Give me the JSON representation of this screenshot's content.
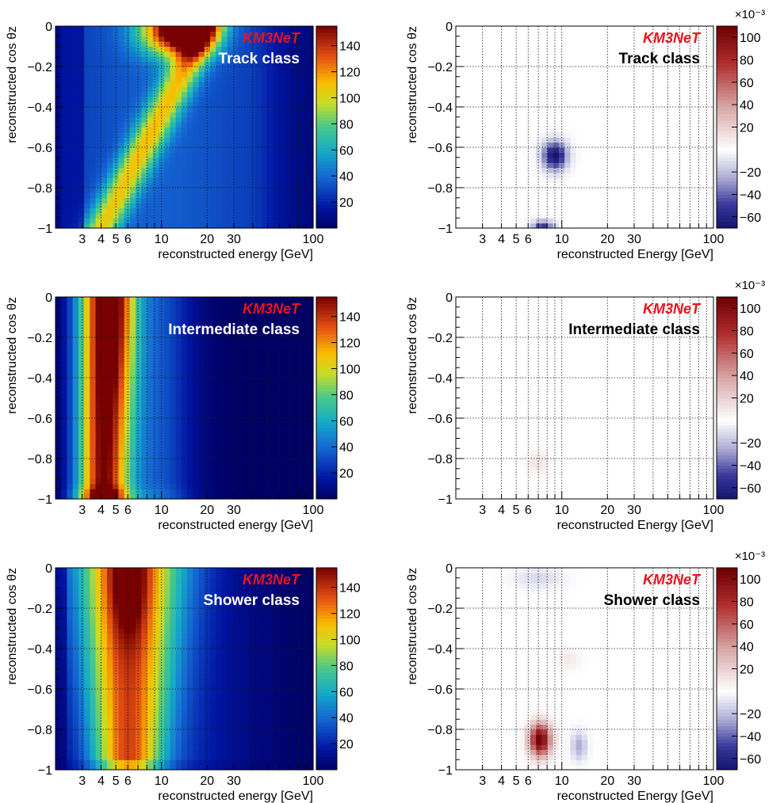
{
  "figure": {
    "background": "#ffffff"
  },
  "chart_data": [
    {
      "id": "p1",
      "type": "heatmap",
      "variant": "counts",
      "class": "track",
      "experiment_label": "KM3NeT",
      "class_label": "Track class",
      "xlabel": "reconstructed energy [GeV]",
      "ylabel": "reconstructed cos θz",
      "xscale": "log",
      "xlim": [
        2,
        100
      ],
      "ylim": [
        -1,
        0
      ],
      "xticks": [
        3,
        4,
        5,
        6,
        10,
        20,
        30,
        100
      ],
      "yticks": [
        0,
        -0.2,
        -0.4,
        -0.6,
        -0.8,
        -1
      ],
      "ytick_labels": [
        "0",
        "−0.2",
        "−0.4",
        "−0.6",
        "−0.8",
        "−1"
      ],
      "colorbar": {
        "range": [
          0,
          155
        ],
        "ticks": [
          20,
          40,
          60,
          80,
          100,
          120,
          140
        ],
        "tick_labels": [
          "20",
          "40",
          "60",
          "80",
          "100",
          "120",
          "140"
        ],
        "exponent_label": ""
      },
      "features": [
        {
          "shape": "ridge-diag",
          "start": [
            4,
            -1
          ],
          "end": [
            20,
            0
          ],
          "peak": 150,
          "width": 0.18
        },
        {
          "shape": "band-top",
          "center_energy": 15,
          "cos_z": -0.05,
          "peak": 150
        }
      ],
      "grid": true
    },
    {
      "id": "p2",
      "type": "heatmap",
      "variant": "difference",
      "class": "track",
      "experiment_label": "KM3NeT",
      "class_label": "Track class",
      "xlabel": "reconstructed Energy [GeV]",
      "ylabel": "reconstructed cos θz",
      "xscale": "log",
      "xlim": [
        2,
        100
      ],
      "ylim": [
        -1,
        0
      ],
      "xticks": [
        3,
        4,
        5,
        6,
        10,
        20,
        30,
        100
      ],
      "yticks": [
        0,
        -0.2,
        -0.4,
        -0.6,
        -0.8,
        -1
      ],
      "ytick_labels": [
        "0",
        "−0.2",
        "−0.4",
        "−0.6",
        "−0.8",
        "−1"
      ],
      "colorbar": {
        "range": [
          -0.07,
          0.11
        ],
        "ticks": [
          -60,
          -40,
          -20,
          20,
          40,
          60,
          80,
          100
        ],
        "tick_labels": [
          "−60",
          "−40",
          "−20",
          "20",
          "40",
          "60",
          "80",
          "100"
        ],
        "exponent_label": "×10⁻³"
      },
      "blobs": [
        {
          "energy": 9.0,
          "cos_z": -0.64,
          "value": -0.07,
          "sigma_logE": 0.08,
          "sigma_cos": 0.07
        },
        {
          "energy": 7.5,
          "cos_z": -0.99,
          "value": -0.05,
          "sigma_logE": 0.07,
          "sigma_cos": 0.03
        }
      ],
      "grid": true
    },
    {
      "id": "p3",
      "type": "heatmap",
      "variant": "counts",
      "class": "intermediate",
      "experiment_label": "KM3NeT",
      "class_label": "Intermediate class",
      "xlabel": "reconstructed energy [GeV]",
      "ylabel": "reconstructed cos θz",
      "xscale": "log",
      "xlim": [
        2,
        100
      ],
      "ylim": [
        -1,
        0
      ],
      "xticks": [
        3,
        4,
        5,
        6,
        10,
        20,
        30,
        100
      ],
      "yticks": [
        0,
        -0.2,
        -0.4,
        -0.6,
        -0.8,
        -1
      ],
      "ytick_labels": [
        "0",
        "−0.2",
        "−0.4",
        "−0.6",
        "−0.8",
        "−1"
      ],
      "colorbar": {
        "range": [
          0,
          155
        ],
        "ticks": [
          20,
          40,
          60,
          80,
          100,
          120,
          140
        ],
        "tick_labels": [
          "20",
          "40",
          "60",
          "80",
          "100",
          "120",
          "140"
        ],
        "exponent_label": ""
      },
      "features": [
        {
          "shape": "column",
          "center_energy": 4.0,
          "peak": 150
        }
      ],
      "grid": true
    },
    {
      "id": "p4",
      "type": "heatmap",
      "variant": "difference",
      "class": "intermediate",
      "experiment_label": "KM3NeT",
      "class_label": "Intermediate class",
      "xlabel": "reconstructed Energy [GeV]",
      "ylabel": "reconstructed cos θz",
      "xscale": "log",
      "xlim": [
        2,
        100
      ],
      "ylim": [
        -1,
        0
      ],
      "xticks": [
        3,
        4,
        5,
        6,
        10,
        20,
        30,
        100
      ],
      "yticks": [
        0,
        -0.2,
        -0.4,
        -0.6,
        -0.8,
        -1
      ],
      "ytick_labels": [
        "0",
        "−0.2",
        "−0.4",
        "−0.6",
        "−0.8",
        "−1"
      ],
      "colorbar": {
        "range": [
          -0.07,
          0.11
        ],
        "ticks": [
          -60,
          -40,
          -20,
          20,
          40,
          60,
          80,
          100
        ],
        "tick_labels": [
          "−60",
          "−40",
          "−20",
          "20",
          "40",
          "60",
          "80",
          "100"
        ],
        "exponent_label": "×10⁻³"
      },
      "blobs": [
        {
          "energy": 7.0,
          "cos_z": -0.82,
          "value": 0.012,
          "sigma_logE": 0.07,
          "sigma_cos": 0.06
        }
      ],
      "grid": true
    },
    {
      "id": "p5",
      "type": "heatmap",
      "variant": "counts",
      "class": "shower",
      "experiment_label": "KM3NeT",
      "class_label": "Shower class",
      "xlabel": "reconstructed energy [GeV]",
      "ylabel": "reconstructed cos θz",
      "xscale": "log",
      "xlim": [
        2,
        100
      ],
      "ylim": [
        -1,
        0
      ],
      "xticks": [
        3,
        4,
        5,
        6,
        10,
        20,
        30,
        100
      ],
      "yticks": [
        0,
        -0.2,
        -0.4,
        -0.6,
        -0.8,
        -1
      ],
      "ytick_labels": [
        "0",
        "−0.2",
        "−0.4",
        "−0.6",
        "−0.8",
        "−1"
      ],
      "colorbar": {
        "range": [
          0,
          155
        ],
        "ticks": [
          20,
          40,
          60,
          80,
          100,
          120,
          140
        ],
        "tick_labels": [
          "20",
          "40",
          "60",
          "80",
          "100",
          "120",
          "140"
        ],
        "exponent_label": ""
      },
      "features": [
        {
          "shape": "funnel",
          "center_energy": 6.0,
          "peak": 145
        }
      ],
      "grid": true
    },
    {
      "id": "p6",
      "type": "heatmap",
      "variant": "difference",
      "class": "shower",
      "experiment_label": "KM3NeT",
      "class_label": "Shower class",
      "xlabel": "reconstructed Energy [GeV]",
      "ylabel": "reconstructed cos θz",
      "xscale": "log",
      "xlim": [
        2,
        100
      ],
      "ylim": [
        -1,
        0
      ],
      "xticks": [
        3,
        4,
        5,
        6,
        10,
        20,
        30,
        100
      ],
      "yticks": [
        0,
        -0.2,
        -0.4,
        -0.6,
        -0.8,
        -1
      ],
      "ytick_labels": [
        "0",
        "−0.2",
        "−0.4",
        "−0.6",
        "−0.8",
        "−1"
      ],
      "colorbar": {
        "range": [
          -0.07,
          0.11
        ],
        "ticks": [
          -60,
          -40,
          -20,
          20,
          40,
          60,
          80,
          100
        ],
        "tick_labels": [
          "−60",
          "−40",
          "−20",
          "20",
          "40",
          "60",
          "80",
          "100"
        ],
        "exponent_label": "×10⁻³"
      },
      "blobs": [
        {
          "energy": 7.2,
          "cos_z": -0.85,
          "value": 0.11,
          "sigma_logE": 0.07,
          "sigma_cos": 0.08
        },
        {
          "energy": 13.0,
          "cos_z": -0.88,
          "value": -0.025,
          "sigma_logE": 0.05,
          "sigma_cos": 0.07
        },
        {
          "energy": 7.0,
          "cos_z": -0.05,
          "value": -0.012,
          "sigma_logE": 0.15,
          "sigma_cos": 0.05
        },
        {
          "energy": 11.0,
          "cos_z": -0.45,
          "value": 0.01,
          "sigma_logE": 0.08,
          "sigma_cos": 0.05
        }
      ],
      "grid": true
    }
  ],
  "colors": {
    "experiment_label": "#e8141e",
    "class_label_on_counts": "#ffffff",
    "class_label_on_difference": "#000000",
    "axis": "#000000",
    "grid": "#1a1a1a"
  }
}
